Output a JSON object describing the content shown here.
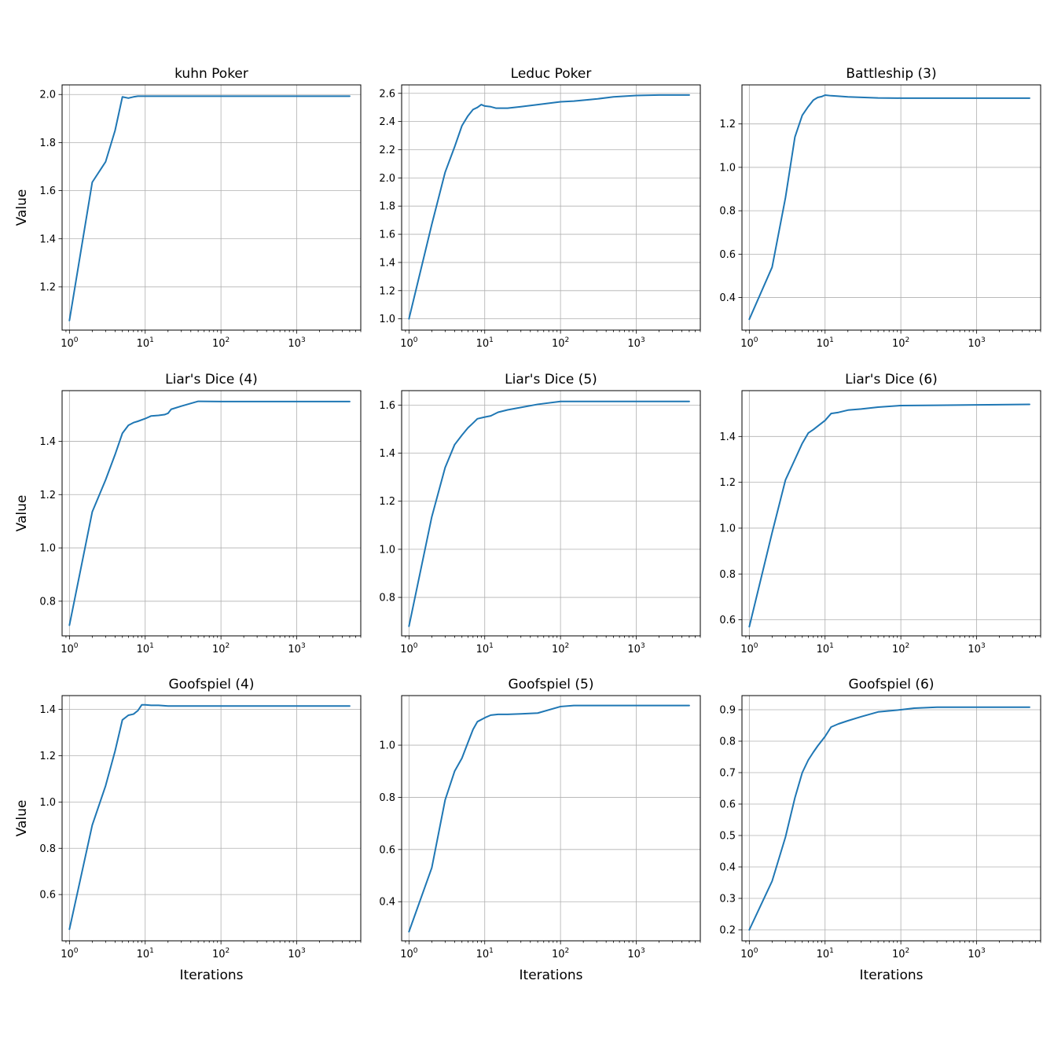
{
  "colors": {
    "series": "#1f77b4",
    "grid": "#b0b0b0",
    "axes": "#000000"
  },
  "chart_data": [
    {
      "type": "line",
      "title": "kuhn Poker",
      "xlabel": "",
      "ylabel": "Value",
      "xscale": "log",
      "xlim": [
        0.8,
        7000
      ],
      "ylim": [
        1.02,
        2.04
      ],
      "xticks": [
        1,
        10,
        100,
        1000
      ],
      "yticks": [
        1.2,
        1.4,
        1.6,
        1.8,
        2.0
      ],
      "ytick_labels": [
        "1.2",
        "1.4",
        "1.6",
        "1.8",
        "2.0"
      ],
      "grid": true,
      "series": [
        {
          "x": [
            1,
            2,
            3,
            4,
            5,
            6,
            7,
            8,
            10,
            20,
            50,
            100,
            1000,
            5000
          ],
          "y": [
            1.06,
            1.635,
            1.72,
            1.85,
            1.99,
            1.985,
            1.99,
            1.993,
            1.993,
            1.993,
            1.993,
            1.993,
            1.993,
            1.993
          ]
        }
      ]
    },
    {
      "type": "line",
      "title": "Leduc Poker",
      "xlabel": "",
      "ylabel": "",
      "xscale": "log",
      "xlim": [
        0.8,
        7000
      ],
      "ylim": [
        0.92,
        2.66
      ],
      "xticks": [
        1,
        10,
        100,
        1000
      ],
      "yticks": [
        1.0,
        1.2,
        1.4,
        1.6,
        1.8,
        2.0,
        2.2,
        2.4,
        2.6
      ],
      "ytick_labels": [
        "1.0",
        "1.2",
        "1.4",
        "1.6",
        "1.8",
        "2.0",
        "2.2",
        "2.4",
        "2.6"
      ],
      "grid": true,
      "series": [
        {
          "x": [
            1,
            2,
            3,
            4,
            5,
            6,
            7,
            8,
            9,
            10,
            12,
            14,
            16,
            20,
            30,
            50,
            100,
            150,
            300,
            500,
            1000,
            2000,
            5000
          ],
          "y": [
            1.0,
            1.67,
            2.04,
            2.22,
            2.37,
            2.44,
            2.485,
            2.5,
            2.52,
            2.51,
            2.505,
            2.495,
            2.495,
            2.495,
            2.505,
            2.52,
            2.54,
            2.545,
            2.56,
            2.575,
            2.585,
            2.588,
            2.588
          ]
        }
      ]
    },
    {
      "type": "line",
      "title": "Battleship (3)",
      "xlabel": "",
      "ylabel": "",
      "xscale": "log",
      "xlim": [
        0.8,
        7000
      ],
      "ylim": [
        0.25,
        1.38
      ],
      "xticks": [
        1,
        10,
        100,
        1000
      ],
      "yticks": [
        0.4,
        0.6,
        0.8,
        1.0,
        1.2
      ],
      "ytick_labels": [
        "0.4",
        "0.6",
        "0.8",
        "1.0",
        "1.2"
      ],
      "grid": true,
      "series": [
        {
          "x": [
            1,
            2,
            3,
            4,
            5,
            6,
            7,
            8,
            9,
            10,
            12,
            15,
            20,
            50,
            100,
            1000,
            5000
          ],
          "y": [
            0.3,
            0.54,
            0.86,
            1.14,
            1.24,
            1.28,
            1.31,
            1.322,
            1.326,
            1.333,
            1.33,
            1.328,
            1.325,
            1.32,
            1.319,
            1.319,
            1.319
          ]
        }
      ]
    },
    {
      "type": "line",
      "title": "Liar's Dice (4)",
      "xlabel": "",
      "ylabel": "Value",
      "xscale": "log",
      "xlim": [
        0.8,
        7000
      ],
      "ylim": [
        0.67,
        1.59
      ],
      "xticks": [
        1,
        10,
        100,
        1000
      ],
      "yticks": [
        0.8,
        1.0,
        1.2,
        1.4
      ],
      "ytick_labels": [
        "0.8",
        "1.0",
        "1.2",
        "1.4"
      ],
      "grid": true,
      "series": [
        {
          "x": [
            1,
            2,
            3,
            4,
            5,
            6,
            7,
            8,
            10,
            12,
            15,
            18,
            20,
            22,
            30,
            50,
            100,
            1000,
            5000
          ],
          "y": [
            0.71,
            1.135,
            1.255,
            1.35,
            1.43,
            1.46,
            1.47,
            1.475,
            1.485,
            1.495,
            1.497,
            1.5,
            1.505,
            1.52,
            1.532,
            1.55,
            1.549,
            1.549,
            1.549
          ]
        }
      ]
    },
    {
      "type": "line",
      "title": "Liar's Dice (5)",
      "xlabel": "",
      "ylabel": "",
      "xscale": "log",
      "xlim": [
        0.8,
        7000
      ],
      "ylim": [
        0.64,
        1.66
      ],
      "xticks": [
        1,
        10,
        100,
        1000
      ],
      "yticks": [
        0.8,
        1.0,
        1.2,
        1.4,
        1.6
      ],
      "ytick_labels": [
        "0.8",
        "1.0",
        "1.2",
        "1.4",
        "1.6"
      ],
      "grid": true,
      "series": [
        {
          "x": [
            1,
            2,
            3,
            4,
            5,
            6,
            7,
            8,
            10,
            12,
            15,
            20,
            30,
            50,
            100,
            1000,
            5000
          ],
          "y": [
            0.68,
            1.135,
            1.34,
            1.435,
            1.475,
            1.505,
            1.525,
            1.543,
            1.55,
            1.555,
            1.57,
            1.58,
            1.59,
            1.603,
            1.615,
            1.615,
            1.615
          ]
        }
      ]
    },
    {
      "type": "line",
      "title": "Liar's Dice (6)",
      "xlabel": "",
      "ylabel": "",
      "xscale": "log",
      "xlim": [
        0.8,
        7000
      ],
      "ylim": [
        0.53,
        1.6
      ],
      "xticks": [
        1,
        10,
        100,
        1000
      ],
      "yticks": [
        0.6,
        0.8,
        1.0,
        1.2,
        1.4
      ],
      "ytick_labels": [
        "0.6",
        "0.8",
        "1.0",
        "1.2",
        "1.4"
      ],
      "grid": true,
      "series": [
        {
          "x": [
            1,
            2,
            3,
            4,
            5,
            6,
            7,
            8,
            10,
            12,
            15,
            20,
            30,
            50,
            100,
            300,
            1000,
            5000
          ],
          "y": [
            0.57,
            0.98,
            1.21,
            1.3,
            1.37,
            1.415,
            1.43,
            1.445,
            1.47,
            1.5,
            1.505,
            1.515,
            1.52,
            1.528,
            1.535,
            1.536,
            1.538,
            1.54
          ]
        }
      ]
    },
    {
      "type": "line",
      "title": "Goofspiel (4)",
      "xlabel": "Iterations",
      "ylabel": "Value",
      "xscale": "log",
      "xlim": [
        0.8,
        7000
      ],
      "ylim": [
        0.4,
        1.46
      ],
      "xticks": [
        1,
        10,
        100,
        1000
      ],
      "yticks": [
        0.6,
        0.8,
        1.0,
        1.2,
        1.4
      ],
      "ytick_labels": [
        "0.6",
        "0.8",
        "1.0",
        "1.2",
        "1.4"
      ],
      "grid": true,
      "series": [
        {
          "x": [
            1,
            2,
            3,
            4,
            5,
            6,
            7,
            8,
            9,
            10,
            12,
            15,
            20,
            50,
            100,
            1000,
            5000
          ],
          "y": [
            0.45,
            0.9,
            1.07,
            1.22,
            1.355,
            1.375,
            1.38,
            1.395,
            1.42,
            1.42,
            1.418,
            1.418,
            1.415,
            1.415,
            1.415,
            1.415,
            1.415
          ]
        }
      ]
    },
    {
      "type": "line",
      "title": "Goofspiel (5)",
      "xlabel": "Iterations",
      "ylabel": "",
      "xscale": "log",
      "xlim": [
        0.8,
        7000
      ],
      "ylim": [
        0.25,
        1.19
      ],
      "xticks": [
        1,
        10,
        100,
        1000
      ],
      "yticks": [
        0.4,
        0.6,
        0.8,
        1.0
      ],
      "ytick_labels": [
        "0.4",
        "0.6",
        "0.8",
        "1.0"
      ],
      "grid": true,
      "series": [
        {
          "x": [
            1,
            2,
            3,
            4,
            5,
            6,
            7,
            8,
            10,
            12,
            15,
            20,
            30,
            50,
            100,
            150,
            300,
            1000,
            5000
          ],
          "y": [
            0.285,
            0.53,
            0.79,
            0.9,
            0.95,
            1.01,
            1.06,
            1.09,
            1.105,
            1.115,
            1.118,
            1.118,
            1.12,
            1.123,
            1.148,
            1.152,
            1.152,
            1.152,
            1.152
          ]
        }
      ]
    },
    {
      "type": "line",
      "title": "Goofspiel (6)",
      "xlabel": "Iterations",
      "ylabel": "",
      "xscale": "log",
      "xlim": [
        0.8,
        7000
      ],
      "ylim": [
        0.165,
        0.945
      ],
      "xticks": [
        1,
        10,
        100,
        1000
      ],
      "yticks": [
        0.2,
        0.3,
        0.4,
        0.5,
        0.6,
        0.7,
        0.8,
        0.9
      ],
      "ytick_labels": [
        "0.2",
        "0.3",
        "0.4",
        "0.5",
        "0.6",
        "0.7",
        "0.8",
        "0.9"
      ],
      "grid": true,
      "series": [
        {
          "x": [
            1,
            2,
            3,
            4,
            5,
            6,
            7,
            8,
            10,
            12,
            15,
            20,
            30,
            50,
            100,
            150,
            300,
            1000,
            5000
          ],
          "y": [
            0.2,
            0.355,
            0.495,
            0.62,
            0.7,
            0.74,
            0.765,
            0.785,
            0.815,
            0.845,
            0.855,
            0.865,
            0.878,
            0.893,
            0.9,
            0.905,
            0.908,
            0.908,
            0.908
          ]
        }
      ]
    }
  ]
}
